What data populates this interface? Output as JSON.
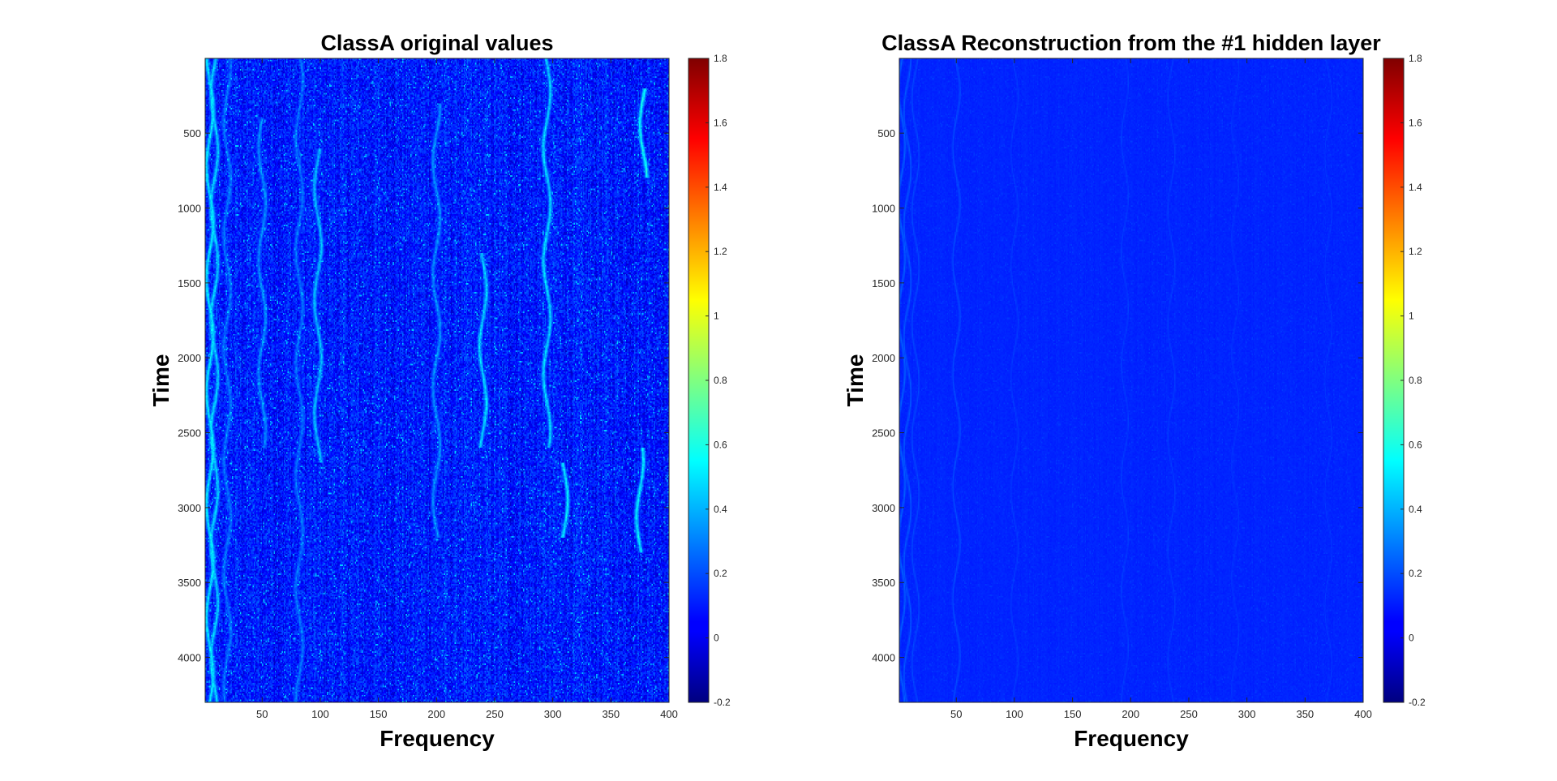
{
  "chart_data": [
    {
      "type": "heatmap",
      "title": "ClassA original values",
      "xlabel": "Frequency",
      "ylabel": "Time",
      "xlim": [
        1,
        400
      ],
      "ylim": [
        1,
        4300
      ],
      "y_reversed": true,
      "xticks": [
        50,
        100,
        150,
        200,
        250,
        300,
        350,
        400
      ],
      "yticks": [
        500,
        1000,
        1500,
        2000,
        2500,
        3000,
        3500,
        4000
      ],
      "colormap": "jet",
      "clim": [
        -0.2,
        1.8
      ],
      "colorbar_ticks": [
        -0.2,
        0,
        0.2,
        0.4,
        0.6,
        0.8,
        1,
        1.2,
        1.4,
        1.6,
        1.8
      ],
      "background_level": 0.1,
      "noise_amplitude": 0.13,
      "features": [
        {
          "x": 5,
          "y_range": [
            1,
            4300
          ],
          "level": 0.55
        },
        {
          "x": 9,
          "y_range": [
            1,
            4300
          ],
          "level": 0.5
        },
        {
          "x": 20,
          "y_range": [
            1,
            4300
          ],
          "level": 0.3
        },
        {
          "x": 50,
          "y_range": [
            400,
            2600
          ],
          "level": 0.35
        },
        {
          "x": 82,
          "y_range": [
            1,
            4300
          ],
          "level": 0.3
        },
        {
          "x": 98,
          "y_range": [
            600,
            2700
          ],
          "level": 0.45
        },
        {
          "x": 200,
          "y_range": [
            300,
            3200
          ],
          "level": 0.35
        },
        {
          "x": 240,
          "y_range": [
            1300,
            2600
          ],
          "level": 0.5
        },
        {
          "x": 295,
          "y_range": [
            1,
            2600
          ],
          "level": 0.5
        },
        {
          "x": 310,
          "y_range": [
            2700,
            3200
          ],
          "level": 0.55
        },
        {
          "x": 378,
          "y_range": [
            200,
            800
          ],
          "level": 0.6
        },
        {
          "x": 375,
          "y_range": [
            2600,
            3300
          ],
          "level": 0.55
        }
      ]
    },
    {
      "type": "heatmap",
      "title": "ClassA Reconstruction from the #1 hidden layer",
      "xlabel": "Frequency",
      "ylabel": "Time",
      "xlim": [
        1,
        400
      ],
      "ylim": [
        1,
        4300
      ],
      "y_reversed": true,
      "xticks": [
        50,
        100,
        150,
        200,
        250,
        300,
        350,
        400
      ],
      "yticks": [
        500,
        1000,
        1500,
        2000,
        2500,
        3000,
        3500,
        4000
      ],
      "colormap": "jet",
      "clim": [
        -0.2,
        1.8
      ],
      "colorbar_ticks": [
        -0.2,
        0,
        0.2,
        0.4,
        0.6,
        0.8,
        1,
        1.2,
        1.4,
        1.6,
        1.8
      ],
      "background_level": 0.12,
      "noise_amplitude": 0.015,
      "features": [
        {
          "x": 3,
          "y_range": [
            1,
            4300
          ],
          "level": 0.24
        },
        {
          "x": 8,
          "y_range": [
            1,
            4300
          ],
          "level": 0.22
        },
        {
          "x": 15,
          "y_range": [
            1,
            4300
          ],
          "level": 0.19
        },
        {
          "x": 50,
          "y_range": [
            1,
            4300
          ],
          "level": 0.2
        },
        {
          "x": 100,
          "y_range": [
            1,
            4300
          ],
          "level": 0.17
        },
        {
          "x": 195,
          "y_range": [
            1,
            4300
          ],
          "level": 0.17
        },
        {
          "x": 235,
          "y_range": [
            1,
            4300
          ],
          "level": 0.17
        },
        {
          "x": 290,
          "y_range": [
            1,
            4300
          ],
          "level": 0.16
        },
        {
          "x": 370,
          "y_range": [
            1,
            4300
          ],
          "level": 0.16
        }
      ]
    }
  ]
}
